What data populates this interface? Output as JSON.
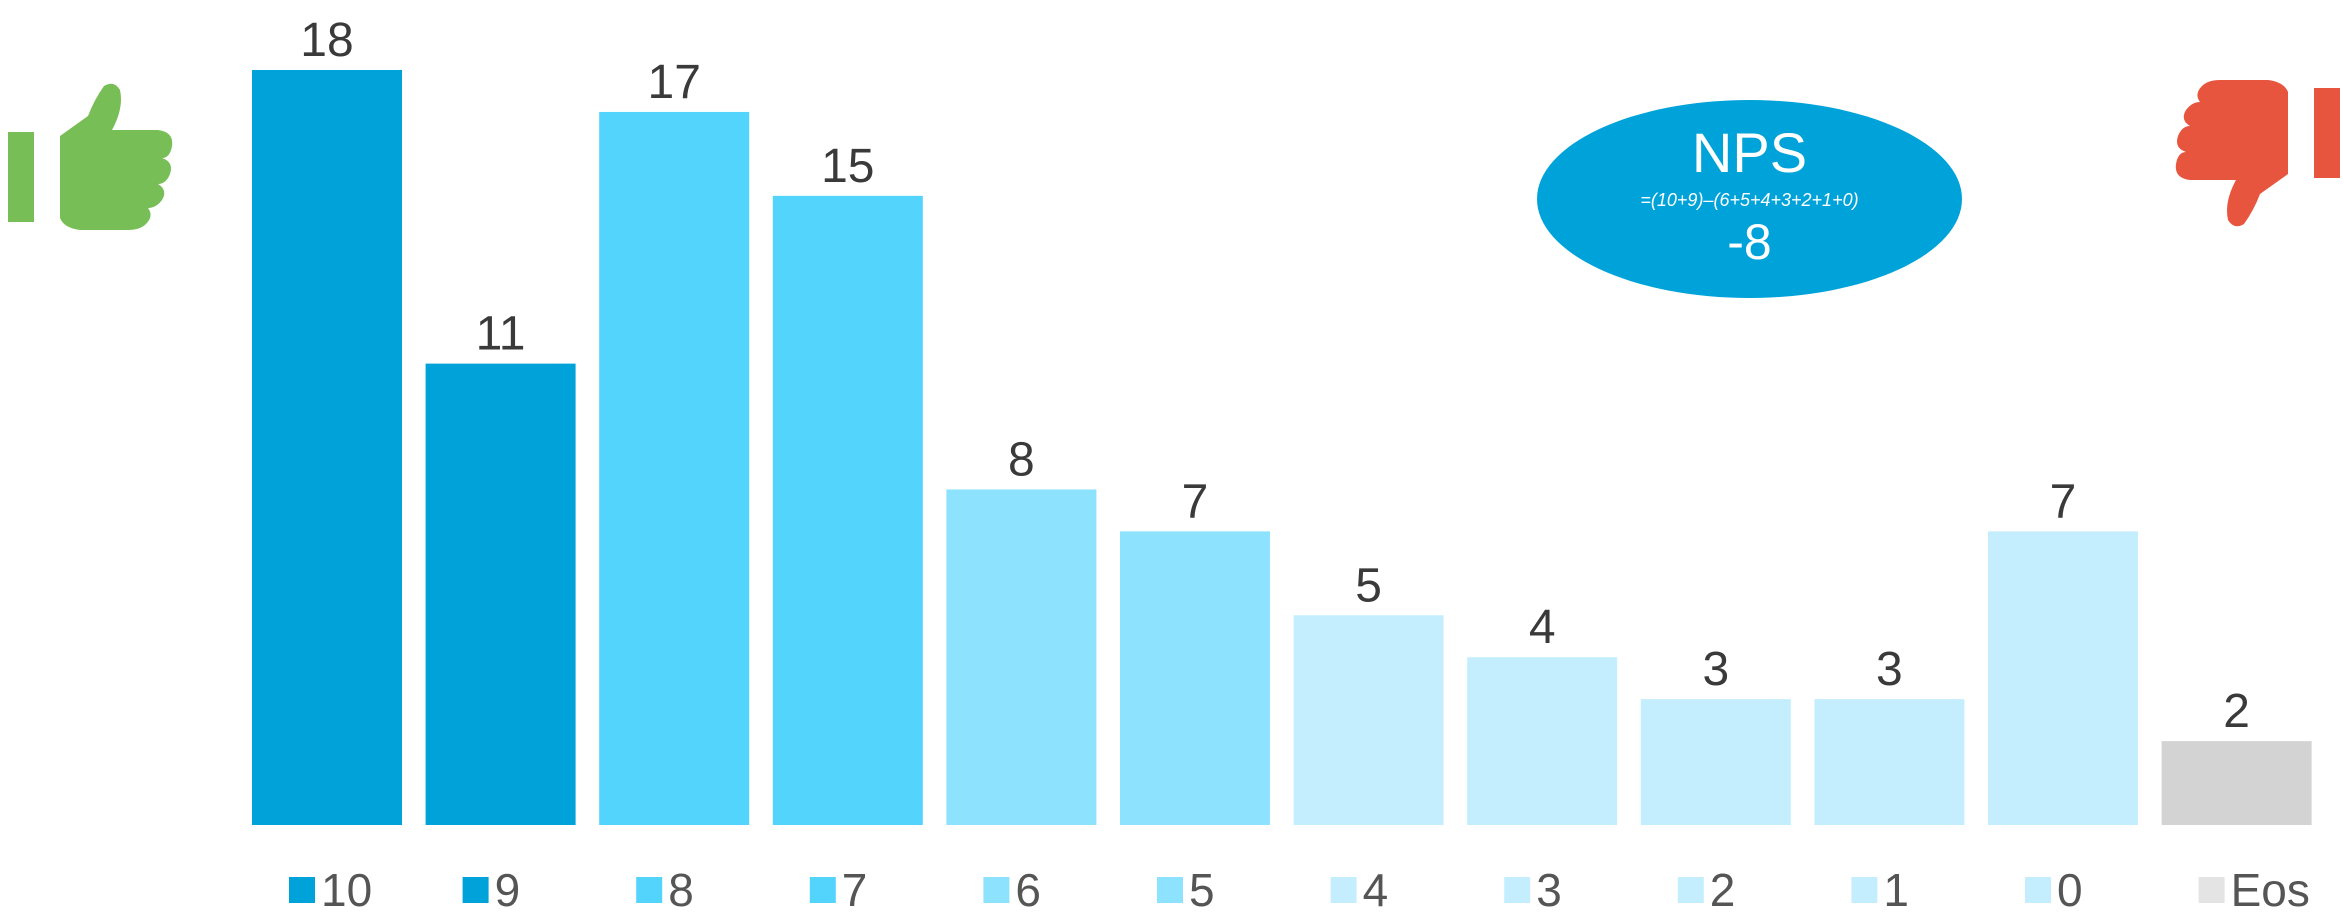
{
  "chart_data": {
    "type": "bar",
    "categories": [
      "10",
      "9",
      "8",
      "7",
      "6",
      "5",
      "4",
      "3",
      "2",
      "1",
      "0",
      "Eos"
    ],
    "values": [
      18,
      11,
      17,
      15,
      8,
      7,
      5,
      4,
      3,
      3,
      7,
      2
    ],
    "colors": [
      "#00a3d9",
      "#00a3d9",
      "#52d4fd",
      "#52d4fd",
      "#8de2fd",
      "#8de2fd",
      "#c4eefd",
      "#c4eefd",
      "#c4eefd",
      "#c4eefd",
      "#c4eefd",
      "#d3d3d3"
    ],
    "legend_colors": [
      "#00a3d9",
      "#00a3d9",
      "#52d4fd",
      "#52d4fd",
      "#8de2fd",
      "#8de2fd",
      "#c4eefd",
      "#c4eefd",
      "#c4eefd",
      "#c4eefd",
      "#c4eefd",
      "#e4e4e4"
    ],
    "ylim": [
      0,
      18
    ],
    "grid": false,
    "legend": "bottom"
  },
  "nps": {
    "title": "NPS",
    "formula": "=(10+9)–(6+5+4+3+2+1+0)",
    "value": "-8",
    "color": "#00a3d9"
  },
  "icons": {
    "promoter": "thumbs-up-icon",
    "detractor": "thumbs-down-icon",
    "promoter_color": "#78be56",
    "detractor_color": "#e8553e"
  },
  "colors": {
    "label_text": "#3a3a3a",
    "legend_text": "#555555"
  }
}
